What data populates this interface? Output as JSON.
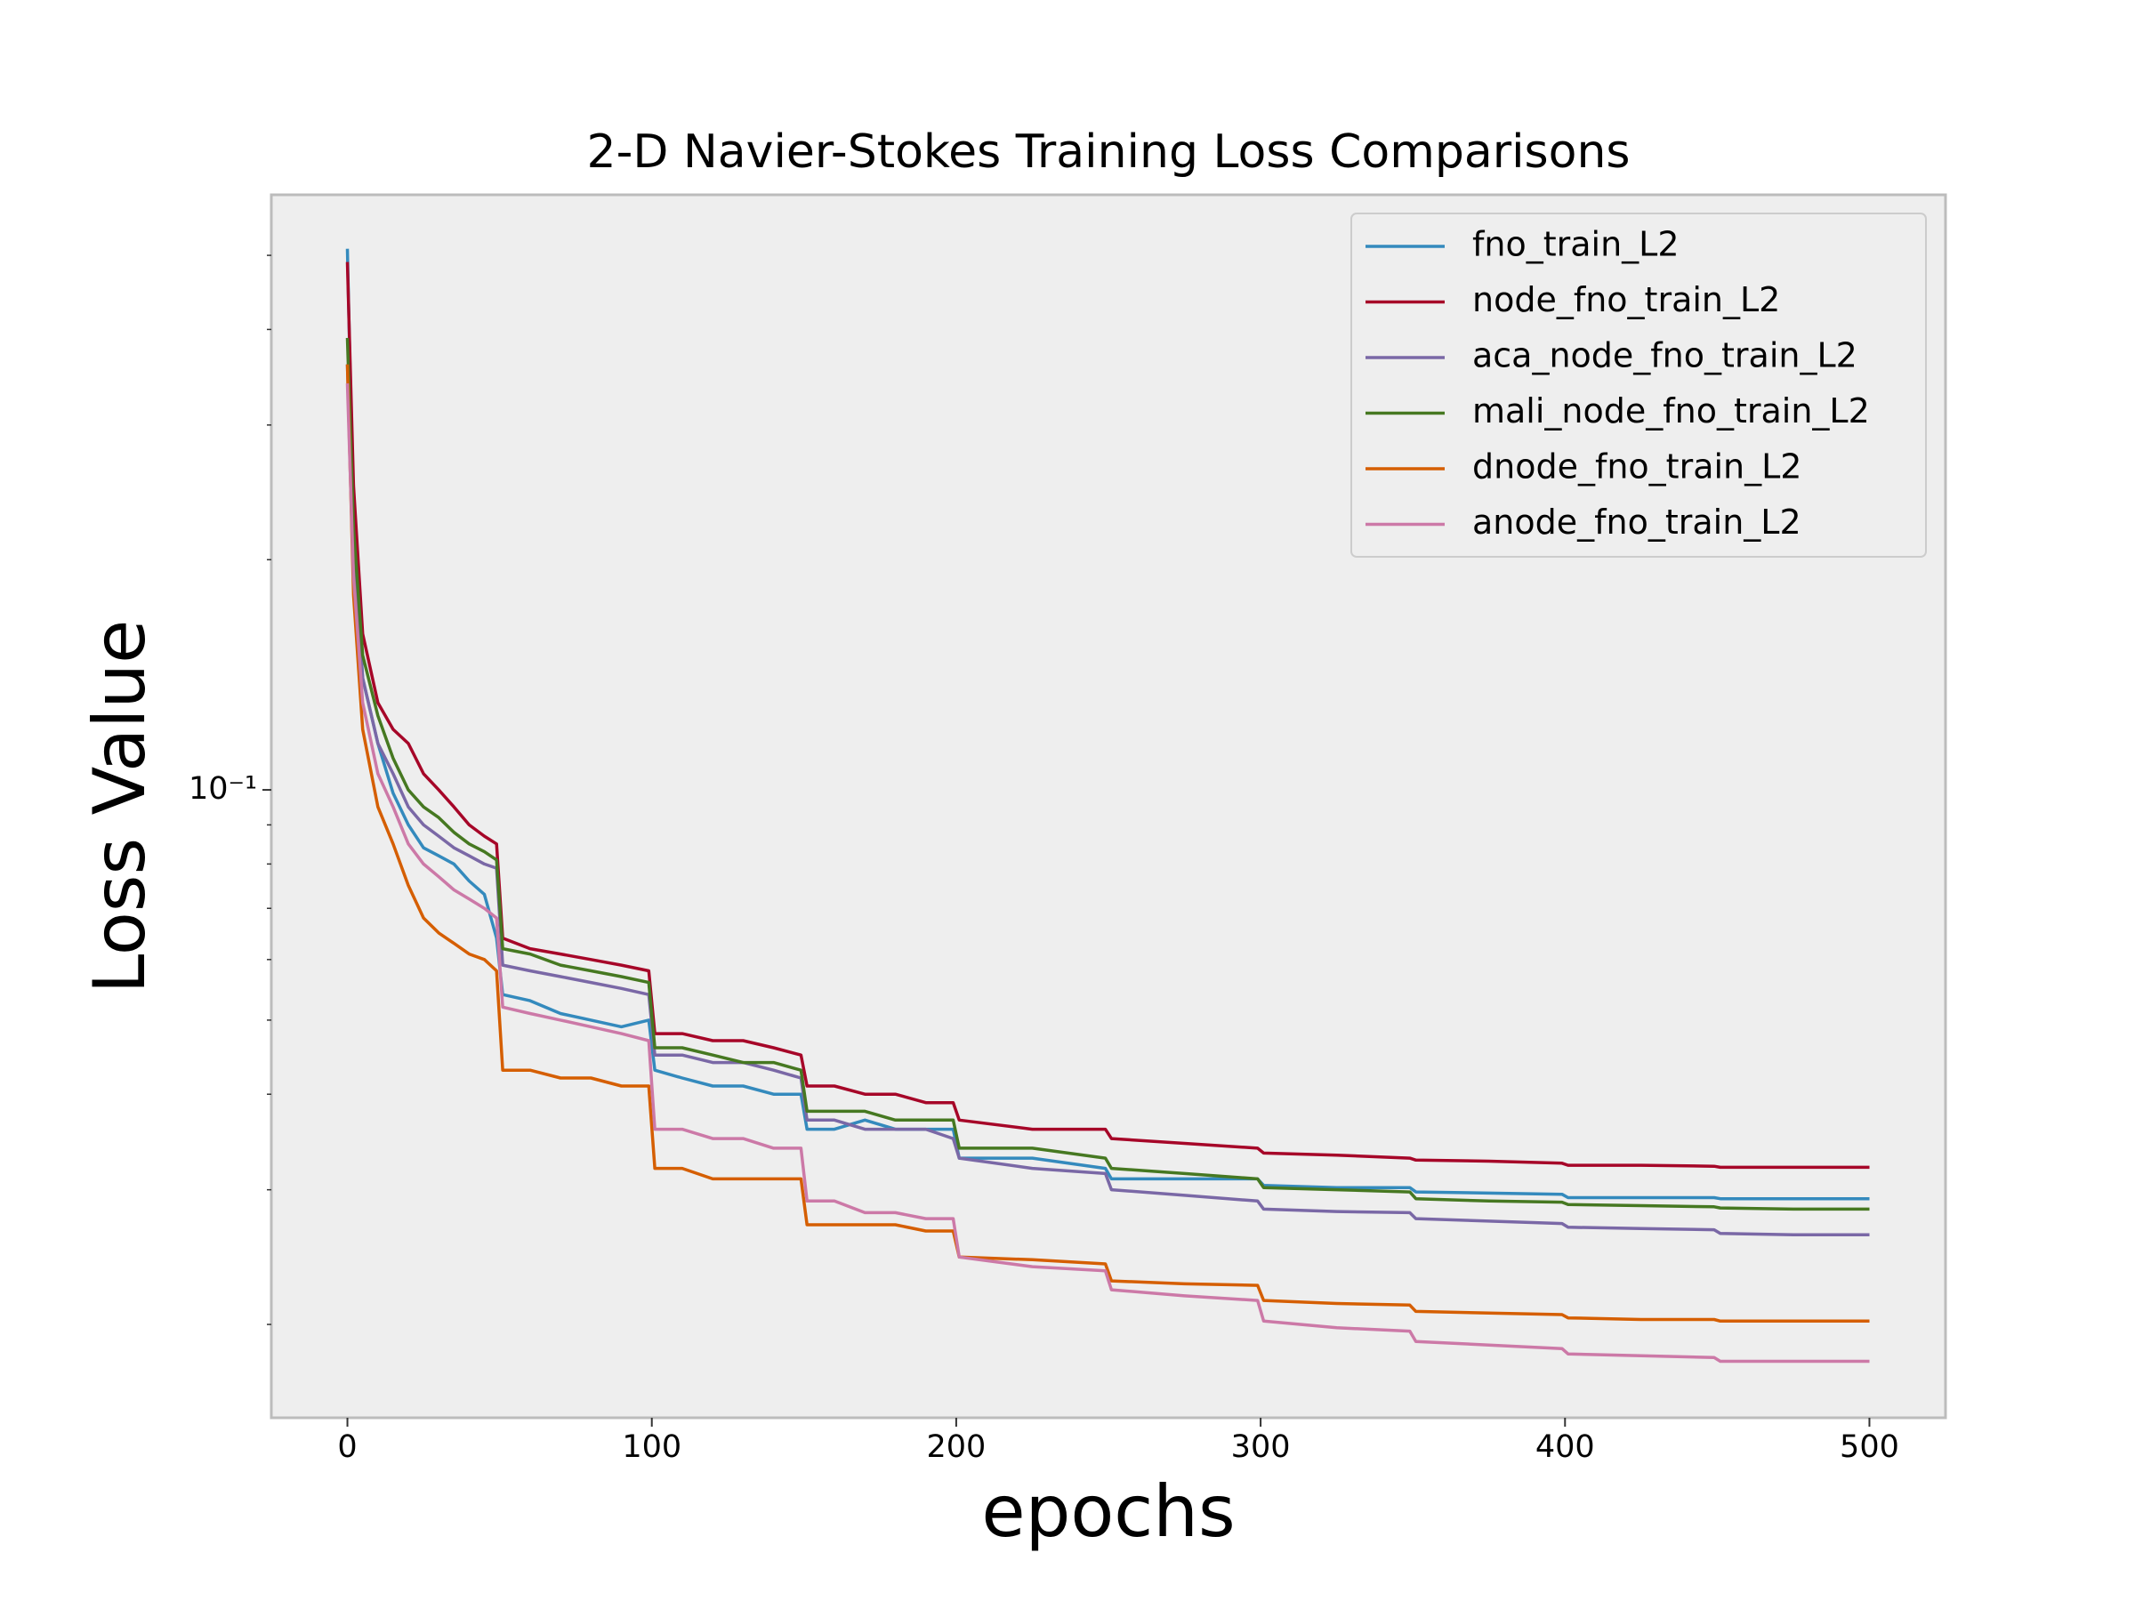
{
  "chart_data": {
    "type": "line",
    "title": "2-D Navier-Stokes Training Loss Comparisons",
    "x_label": "epochs",
    "y_label": "Loss Value",
    "yscale": "log",
    "legend": "upper right",
    "grid": false,
    "xlim": [
      -25,
      525
    ],
    "ylim": [
      0.0151,
      0.6
    ],
    "xticks": [
      0,
      100,
      200,
      300,
      400,
      500
    ],
    "yticks": [
      {
        "value": 0.1,
        "label": "10⁻¹"
      }
    ],
    "yticks_minor": [
      0.02,
      0.03,
      0.04,
      0.05,
      0.06,
      0.07,
      0.08,
      0.09,
      0.2,
      0.3,
      0.4,
      0.5
    ],
    "x": [
      0,
      2,
      5,
      10,
      15,
      20,
      25,
      30,
      35,
      40,
      45,
      49,
      51,
      60,
      70,
      80,
      90,
      99,
      101,
      110,
      120,
      130,
      140,
      149,
      151,
      160,
      170,
      180,
      190,
      199,
      201,
      225,
      249,
      251,
      275,
      299,
      301,
      325,
      349,
      351,
      375,
      399,
      401,
      425,
      449,
      451,
      475,
      500
    ],
    "series": [
      {
        "name": "fno_train_L2",
        "color": "#348abd",
        "values": [
          0.51,
          0.22,
          0.14,
          0.115,
          0.099,
          0.09,
          0.084,
          0.082,
          0.08,
          0.076,
          0.073,
          0.064,
          0.054,
          0.053,
          0.051,
          0.05,
          0.049,
          0.05,
          0.043,
          0.042,
          0.041,
          0.041,
          0.04,
          0.04,
          0.036,
          0.036,
          0.037,
          0.036,
          0.036,
          0.036,
          0.033,
          0.033,
          0.032,
          0.031,
          0.031,
          0.031,
          0.0304,
          0.0302,
          0.0302,
          0.0298,
          0.0297,
          0.0296,
          0.0293,
          0.0293,
          0.0293,
          0.0292,
          0.0292,
          0.0292
        ]
      },
      {
        "name": "node_fno_train_L2",
        "color": "#a60628",
        "values": [
          0.49,
          0.25,
          0.16,
          0.13,
          0.12,
          0.115,
          0.105,
          0.1,
          0.095,
          0.09,
          0.087,
          0.085,
          0.064,
          0.062,
          0.061,
          0.06,
          0.059,
          0.058,
          0.048,
          0.048,
          0.047,
          0.047,
          0.046,
          0.045,
          0.041,
          0.041,
          0.04,
          0.04,
          0.039,
          0.039,
          0.037,
          0.036,
          0.036,
          0.035,
          0.0345,
          0.034,
          0.0335,
          0.0333,
          0.033,
          0.0328,
          0.0327,
          0.0325,
          0.0323,
          0.0323,
          0.0322,
          0.0321,
          0.0321,
          0.0321
        ]
      },
      {
        "name": "aca_node_fno_train_L2",
        "color": "#7a68a6",
        "values": [
          0.36,
          0.2,
          0.14,
          0.115,
          0.105,
          0.095,
          0.09,
          0.087,
          0.084,
          0.082,
          0.08,
          0.079,
          0.059,
          0.058,
          0.057,
          0.056,
          0.055,
          0.054,
          0.045,
          0.045,
          0.044,
          0.044,
          0.043,
          0.042,
          0.037,
          0.037,
          0.036,
          0.036,
          0.036,
          0.035,
          0.033,
          0.032,
          0.0315,
          0.03,
          0.0295,
          0.029,
          0.0283,
          0.0281,
          0.028,
          0.0275,
          0.0273,
          0.0271,
          0.0268,
          0.0267,
          0.0266,
          0.0263,
          0.0262,
          0.0262
        ]
      },
      {
        "name": "mali_node_fno_train_L2",
        "color": "#467821",
        "values": [
          0.39,
          0.22,
          0.15,
          0.125,
          0.11,
          0.1,
          0.095,
          0.092,
          0.088,
          0.085,
          0.083,
          0.081,
          0.062,
          0.061,
          0.059,
          0.058,
          0.057,
          0.056,
          0.046,
          0.046,
          0.045,
          0.044,
          0.044,
          0.043,
          0.038,
          0.038,
          0.038,
          0.037,
          0.037,
          0.037,
          0.034,
          0.034,
          0.033,
          0.032,
          0.0315,
          0.031,
          0.0302,
          0.03,
          0.0298,
          0.0292,
          0.029,
          0.0289,
          0.0287,
          0.0286,
          0.0285,
          0.0284,
          0.0283,
          0.0283
        ]
      },
      {
        "name": "dnode_fno_train_L2",
        "color": "#d55e00",
        "values": [
          0.36,
          0.18,
          0.12,
          0.095,
          0.085,
          0.075,
          0.068,
          0.065,
          0.063,
          0.061,
          0.06,
          0.058,
          0.043,
          0.043,
          0.042,
          0.042,
          0.041,
          0.041,
          0.032,
          0.032,
          0.031,
          0.031,
          0.031,
          0.031,
          0.027,
          0.027,
          0.027,
          0.027,
          0.0265,
          0.0265,
          0.0245,
          0.0243,
          0.024,
          0.0228,
          0.0226,
          0.0225,
          0.0215,
          0.0213,
          0.0212,
          0.0208,
          0.0207,
          0.0206,
          0.0204,
          0.0203,
          0.0203,
          0.0202,
          0.0202,
          0.0202
        ]
      },
      {
        "name": "anode_fno_train_L2",
        "color": "#cc79a7",
        "values": [
          0.34,
          0.19,
          0.13,
          0.105,
          0.095,
          0.085,
          0.08,
          0.077,
          0.074,
          0.072,
          0.07,
          0.068,
          0.052,
          0.051,
          0.05,
          0.049,
          0.048,
          0.047,
          0.036,
          0.036,
          0.035,
          0.035,
          0.034,
          0.034,
          0.029,
          0.029,
          0.028,
          0.028,
          0.0275,
          0.0275,
          0.0245,
          0.0238,
          0.0235,
          0.0222,
          0.0218,
          0.0215,
          0.0202,
          0.0198,
          0.0196,
          0.019,
          0.0188,
          0.0186,
          0.0183,
          0.0182,
          0.0181,
          0.0179,
          0.0179,
          0.0179
        ]
      }
    ]
  }
}
